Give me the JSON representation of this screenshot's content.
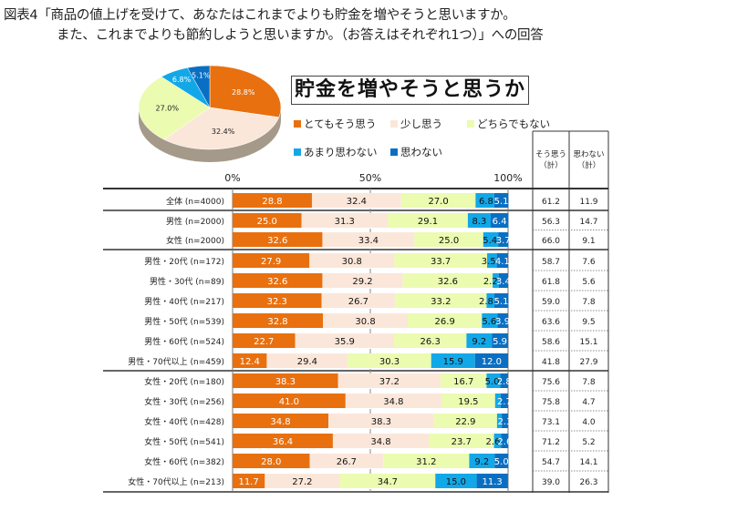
{
  "figure": {
    "title_line1": "図表4「商品の値上げを受けて、あなたはこれまでよりも貯金を増やそうと思いますか。",
    "title_line2": "また、これまでよりも節約しようと思いますか。（お答えはそれぞれ1つ）」への回答"
  },
  "chart_data": [
    {
      "type": "pie",
      "title": "",
      "labels": [
        "とてもそう思う",
        "少し思う",
        "どちらでもない",
        "あまり思わない",
        "思わない"
      ],
      "values": [
        28.8,
        32.4,
        27.0,
        6.8,
        5.1
      ],
      "data_labels": [
        "28.8%",
        "32.4%",
        "27.0%",
        "6.8%",
        "5.1%"
      ],
      "colors": [
        "#e8700f",
        "#fbe7da",
        "#ebfbb0",
        "#12a8e8",
        "#0a6fc2"
      ]
    },
    {
      "type": "bar",
      "orientation": "horizontal",
      "stacked": "100%",
      "title": "貯金を増やそうと思うか",
      "xlabel": "",
      "ylabel": "",
      "xlim": [
        0,
        100
      ],
      "x_ticks": [
        "0%",
        "50%",
        "100%"
      ],
      "legend": [
        "とてもそう思う",
        "少し思う",
        "どちらでもない",
        "あまり思わない",
        "思わない"
      ],
      "legend_position": "top",
      "colors": [
        "#e8700f",
        "#fbe7da",
        "#ebfbb0",
        "#12a8e8",
        "#0a6fc2"
      ],
      "label_colors": [
        "#ffffff",
        "#111111",
        "#111111",
        "#111111",
        "#ffffff"
      ],
      "categories": [
        "全体 (n=4000)",
        "男性 (n=2000)",
        "女性 (n=2000)",
        "男性・20代 (n=172)",
        "男性・30代 (n=89)",
        "男性・40代 (n=217)",
        "男性・50代 (n=539)",
        "男性・60代 (n=524)",
        "男性・70代以上 (n=459)",
        "女性・20代 (n=180)",
        "女性・30代 (n=256)",
        "女性・40代 (n=428)",
        "女性・50代 (n=541)",
        "女性・60代 (n=382)",
        "女性・70代以上 (n=213)"
      ],
      "groups": [
        [
          0
        ],
        [
          1,
          2
        ],
        [
          3,
          4,
          5,
          6,
          7,
          8
        ],
        [
          9,
          10,
          11,
          12,
          13,
          14
        ]
      ],
      "series": [
        {
          "name": "とてもそう思う",
          "values": [
            28.8,
            25.0,
            32.6,
            27.9,
            32.6,
            32.3,
            32.8,
            22.7,
            12.4,
            38.3,
            41.0,
            34.8,
            36.4,
            28.0,
            11.7
          ]
        },
        {
          "name": "少し思う",
          "values": [
            32.4,
            31.3,
            33.4,
            30.8,
            29.2,
            26.7,
            30.8,
            35.9,
            29.4,
            37.2,
            34.8,
            38.3,
            34.8,
            26.7,
            27.2
          ]
        },
        {
          "name": "どちらでもない",
          "values": [
            27.0,
            29.1,
            25.0,
            33.7,
            32.6,
            33.2,
            26.9,
            26.3,
            30.3,
            16.7,
            19.5,
            22.9,
            23.7,
            31.2,
            34.7
          ]
        },
        {
          "name": "あまり思わない",
          "values": [
            6.8,
            8.3,
            5.4,
            3.5,
            2.2,
            2.8,
            5.6,
            9.2,
            15.9,
            5.0,
            2.0,
            1.7,
            2.6,
            9.2,
            15.0
          ]
        },
        {
          "name": "思わない",
          "values": [
            5.1,
            6.4,
            3.7,
            4.1,
            3.4,
            5.1,
            3.9,
            5.9,
            12.0,
            2.8,
            2.7,
            2.3,
            2.6,
            5.0,
            11.3
          ]
        }
      ],
      "shown_labels": [
        [
          "28.8",
          "32.4",
          "27.0",
          "6.8",
          "5.1"
        ],
        [
          "25.0",
          "31.3",
          "29.1",
          "8.3",
          "6.4"
        ],
        [
          "32.6",
          "33.4",
          "25.0",
          "5.4",
          "3.7"
        ],
        [
          "27.9",
          "30.8",
          "33.7",
          "3.5",
          "4.1"
        ],
        [
          "32.6",
          "29.2",
          "32.6",
          "2.2",
          "3.4"
        ],
        [
          "32.3",
          "26.7",
          "33.2",
          "2.8",
          "5.1"
        ],
        [
          "32.8",
          "30.8",
          "26.9",
          "5.6",
          "3.9"
        ],
        [
          "22.7",
          "35.9",
          "26.3",
          "9.2",
          "5.9"
        ],
        [
          "12.4",
          "29.4",
          "30.3",
          "15.9",
          "12.0"
        ],
        [
          "38.3",
          "37.2",
          "16.7",
          "5.0",
          "2.8"
        ],
        [
          "41.0",
          "34.8",
          "19.5",
          "",
          "2.7"
        ],
        [
          "34.8",
          "38.3",
          "22.9",
          "",
          "2.3"
        ],
        [
          "36.4",
          "34.8",
          "23.7",
          "2.6",
          "2.6"
        ],
        [
          "28.0",
          "26.7",
          "31.2",
          "9.2",
          "5.0"
        ],
        [
          "11.7",
          "27.2",
          "34.7",
          "15.0",
          "11.3"
        ]
      ]
    },
    {
      "type": "table",
      "columns": [
        "そう思う\n（計）",
        "思わない\n（計）"
      ],
      "rows": [
        [
          "61.2",
          "11.9"
        ],
        [
          "56.3",
          "14.7"
        ],
        [
          "66.0",
          "9.1"
        ],
        [
          "58.7",
          "7.6"
        ],
        [
          "61.8",
          "5.6"
        ],
        [
          "59.0",
          "7.8"
        ],
        [
          "63.6",
          "9.5"
        ],
        [
          "58.6",
          "15.1"
        ],
        [
          "41.8",
          "27.9"
        ],
        [
          "75.6",
          "7.8"
        ],
        [
          "75.8",
          "4.7"
        ],
        [
          "73.1",
          "4.0"
        ],
        [
          "71.2",
          "5.2"
        ],
        [
          "54.7",
          "14.1"
        ],
        [
          "39.0",
          "26.3"
        ]
      ]
    }
  ]
}
